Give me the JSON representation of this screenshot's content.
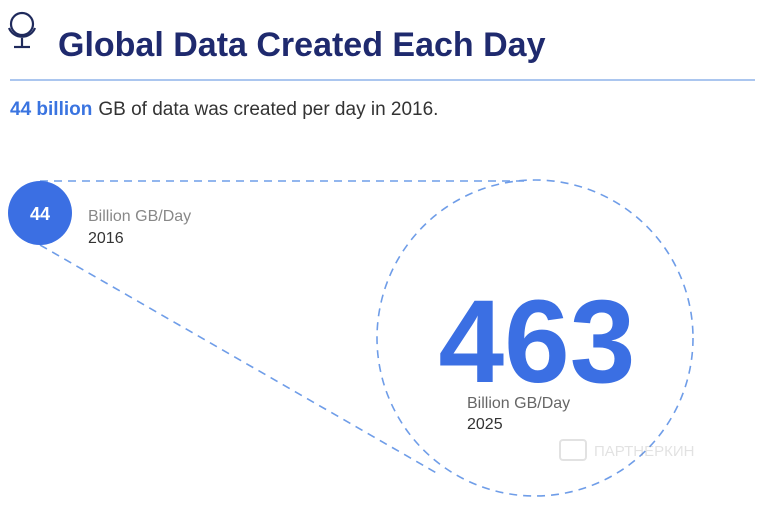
{
  "header": {
    "title": "Global Data Created Each Day"
  },
  "summary": {
    "highlight": "44 billion",
    "text": "GB of data was created per day in 2016."
  },
  "items": [
    {
      "value": 44,
      "unit": "Billion GB/Day",
      "year": 2016
    },
    {
      "value": 463,
      "unit": "Billion GB/Day",
      "year": 2025
    }
  ],
  "watermark": "ПАРТНЕРКИН"
}
